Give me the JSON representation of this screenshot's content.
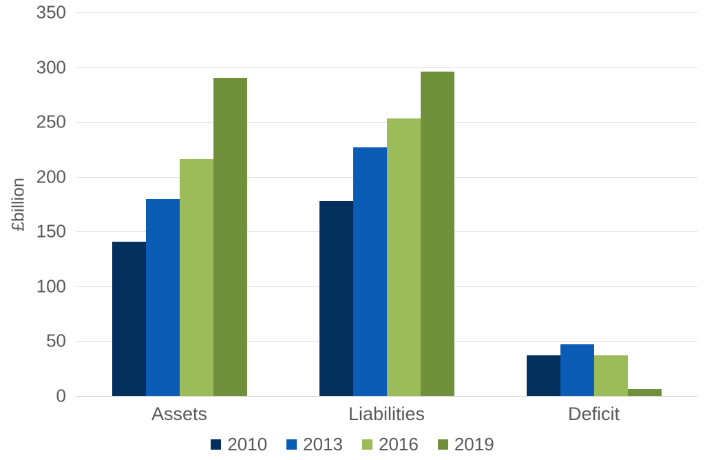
{
  "chart_data": {
    "type": "bar",
    "title": "",
    "xlabel": "",
    "ylabel": "£billion",
    "categories": [
      "Assets",
      "Liabilities",
      "Deficit"
    ],
    "series": [
      {
        "name": "2010",
        "color": "#04305e",
        "values": [
          141,
          178,
          37
        ]
      },
      {
        "name": "2013",
        "color": "#0b5cb5",
        "values": [
          180,
          227,
          47
        ]
      },
      {
        "name": "2016",
        "color": "#9cbb59",
        "values": [
          216,
          253,
          37
        ]
      },
      {
        "name": "2019",
        "color": "#70903c",
        "values": [
          290,
          296,
          6
        ]
      }
    ],
    "ylim": [
      0,
      350
    ],
    "yticks": [
      0,
      50,
      100,
      150,
      200,
      250,
      300,
      350
    ],
    "grid": true,
    "legend_position": "bottom"
  },
  "colors": {
    "background": "#ffffff",
    "text": "#595959",
    "gridline": "#dcdcdc"
  }
}
